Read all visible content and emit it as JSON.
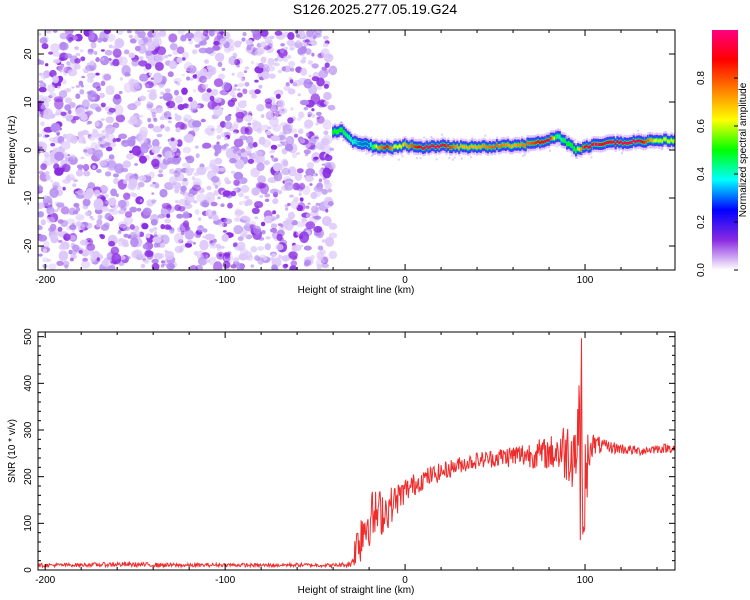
{
  "title": "S126.2025.277.05.19.G24",
  "chart_data": [
    {
      "type": "heatmap",
      "title": "S126.2025.277.05.19.G24",
      "xlabel": "Height of straight line (km)",
      "ylabel": "Frequency (Hz)",
      "xlim": [
        -204,
        150
      ],
      "ylim": [
        -25,
        25
      ],
      "xticks": [
        -200,
        -100,
        0,
        100
      ],
      "yticks": [
        -20,
        -10,
        0,
        10,
        20
      ],
      "noise_region_x": [
        -204,
        -40
      ],
      "signal_region_x": [
        -40,
        150
      ],
      "colorbar": {
        "label": "Normalized spectral amplitude",
        "range": [
          0.0,
          1.0
        ],
        "ticks": [
          "0.0",
          "0.2",
          "0.4",
          "0.6",
          "0.8"
        ],
        "colors": [
          "#ffffff",
          "#8a2be2",
          "#0000ff",
          "#00ffff",
          "#00ff00",
          "#ffff00",
          "#ff8000",
          "#ff0000",
          "#ff0080"
        ]
      },
      "signal_trace": {
        "x": [
          -40,
          -35,
          -30,
          -25,
          -20,
          -15,
          -10,
          -5,
          0,
          10,
          20,
          30,
          40,
          50,
          60,
          70,
          80,
          85,
          90,
          95,
          100,
          105,
          110,
          120,
          130,
          140,
          150
        ],
        "freq": [
          4,
          4,
          2,
          1.5,
          1,
          0.5,
          0.5,
          0.5,
          1,
          0.5,
          0.8,
          0.6,
          0.6,
          0.8,
          1,
          1.2,
          2,
          3,
          1.5,
          0,
          0.5,
          1,
          1.5,
          1.5,
          1.8,
          2,
          2
        ],
        "peak_amplitude": [
          0.5,
          0.5,
          0.4,
          0.3,
          0.3,
          0.7,
          0.9,
          0.6,
          0.7,
          0.95,
          0.95,
          0.7,
          0.7,
          0.8,
          0.7,
          0.8,
          0.95,
          0.4,
          0.5,
          0.5,
          0.9,
          0.95,
          0.9,
          0.95,
          0.95,
          0.6,
          0.6
        ]
      }
    },
    {
      "type": "line",
      "xlabel": "Height of straight line (km)",
      "ylabel": "SNR (10 * v/v)",
      "xlim": [
        -204,
        150
      ],
      "ylim": [
        0,
        510
      ],
      "xticks": [
        -200,
        -100,
        0,
        100
      ],
      "yticks": [
        0,
        100,
        200,
        300,
        400,
        500
      ],
      "color": "#ef2c2c",
      "series": [
        {
          "name": "SNR",
          "x": [
            -204,
            -180,
            -160,
            -140,
            -120,
            -100,
            -80,
            -60,
            -40,
            -30,
            -25,
            -20,
            -15,
            -10,
            -5,
            0,
            10,
            20,
            30,
            40,
            50,
            60,
            70,
            80,
            85,
            90,
            95,
            98,
            100,
            103,
            110,
            120,
            130,
            140,
            150
          ],
          "values": [
            10,
            11,
            12,
            11,
            10,
            11,
            10,
            11,
            10,
            12,
            80,
            110,
            120,
            130,
            150,
            170,
            195,
            210,
            225,
            235,
            240,
            245,
            248,
            250,
            255,
            255,
            260,
            300,
            200,
            270,
            265,
            260,
            255,
            260,
            262
          ],
          "noise_amplitude": [
            4,
            4,
            5,
            5,
            4,
            4,
            4,
            4,
            4,
            6,
            70,
            60,
            55,
            45,
            35,
            28,
            22,
            20,
            18,
            18,
            20,
            25,
            30,
            35,
            50,
            70,
            90,
            140,
            120,
            30,
            15,
            12,
            10,
            10,
            10
          ]
        }
      ]
    }
  ]
}
